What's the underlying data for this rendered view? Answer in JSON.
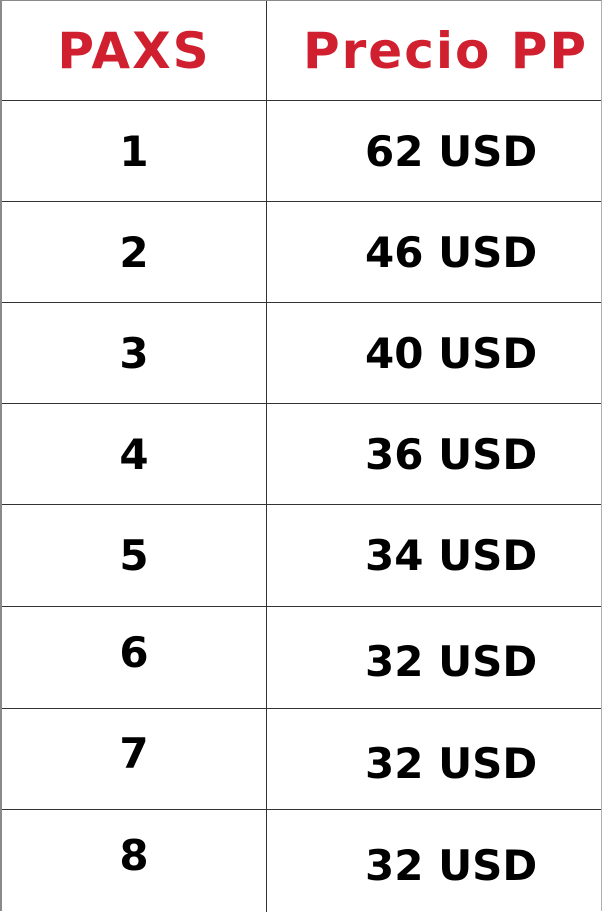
{
  "header": {
    "col_pax": "PAXS",
    "col_price": "Precio PP"
  },
  "rows": [
    {
      "pax": "1",
      "price": "62 USD"
    },
    {
      "pax": "2",
      "price": "46 USD"
    },
    {
      "pax": "3",
      "price": "40 USD"
    },
    {
      "pax": "4",
      "price": "36 USD"
    },
    {
      "pax": "5",
      "price": "34 USD"
    },
    {
      "pax": "6",
      "price": "32 USD"
    },
    {
      "pax": "7",
      "price": "32 USD"
    },
    {
      "pax": "8",
      "price": "32 USD"
    }
  ],
  "colors": {
    "header_text": "#d01f2e",
    "body_text": "#000000",
    "grid_line": "#333333"
  }
}
